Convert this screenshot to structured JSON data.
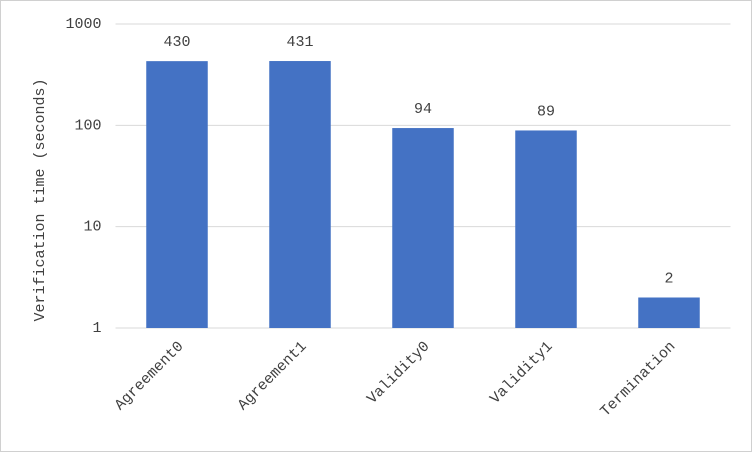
{
  "chart_data": {
    "type": "bar",
    "y_label": "Verification time (seconds)",
    "categories": [
      "Agreement0",
      "Agreement1",
      "Validity0",
      "Validity1",
      "Termination"
    ],
    "values": [
      430,
      431,
      94,
      89,
      2
    ],
    "color": "#4472c4",
    "log_y": true,
    "ylim": [
      1,
      1000
    ],
    "yticks": [
      1,
      10,
      100,
      1000
    ],
    "grid": true
  }
}
